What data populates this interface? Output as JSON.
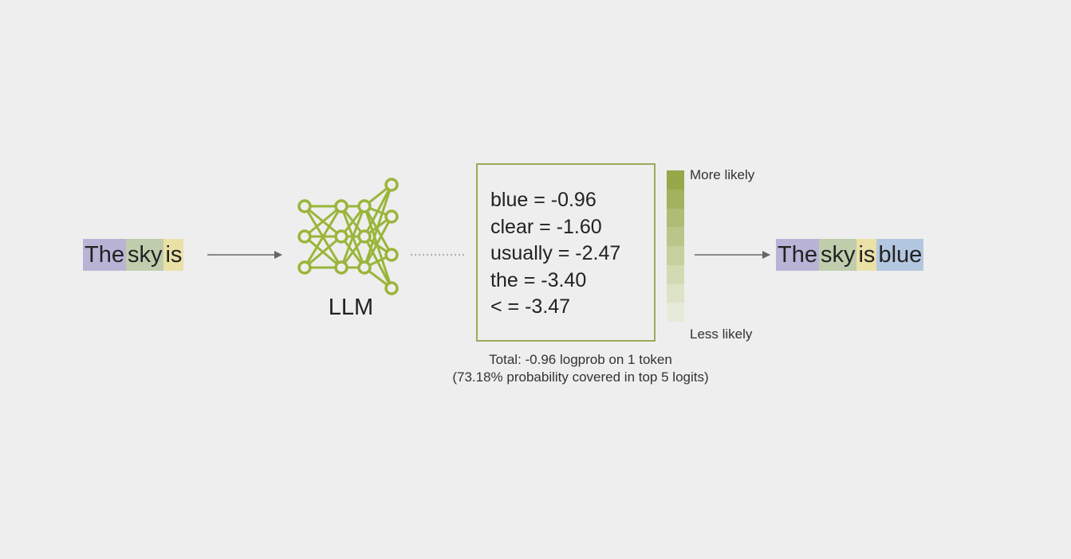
{
  "input_tokens": [
    {
      "text": "The",
      "color": "#b9b3d6"
    },
    {
      "text": "sky",
      "color": "#bfcdad"
    },
    {
      "text": "is",
      "color": "#ebe0a6"
    }
  ],
  "model_label": "LLM",
  "logits": [
    {
      "token": "blue",
      "logprob": "-0.96",
      "line": "blue = -0.96"
    },
    {
      "token": "clear",
      "logprob": "-1.60",
      "line": "clear = -1.60"
    },
    {
      "token": "usually",
      "logprob": "-2.47",
      "line": "usually = -2.47"
    },
    {
      "token": "the",
      "logprob": "-3.40",
      "line": "the = -3.40"
    },
    {
      "token": "<",
      "logprob": "-3.47",
      "line": "< = -3.47"
    }
  ],
  "scale": {
    "top_label": "More likely",
    "bottom_label": "Less likely",
    "colors": [
      "#95a84a",
      "#a2b25f",
      "#aebd74",
      "#bac689",
      "#c6d09e",
      "#d2dab3",
      "#dde3c6",
      "#e6eada"
    ]
  },
  "caption": {
    "line1": "Total: -0.96 logprob on 1 token",
    "line2": "(73.18% probability covered in top 5 logits)"
  },
  "output_tokens": [
    {
      "text": "The",
      "color": "#b9b3d6"
    },
    {
      "text": "sky",
      "color": "#bfcdad"
    },
    {
      "text": "is",
      "color": "#ebe0a6"
    },
    {
      "text": "blue",
      "color": "#b4c7e0"
    }
  ],
  "colors": {
    "network": "#99b53a",
    "box_border": "#9aaa5a",
    "arrow": "#666666"
  }
}
